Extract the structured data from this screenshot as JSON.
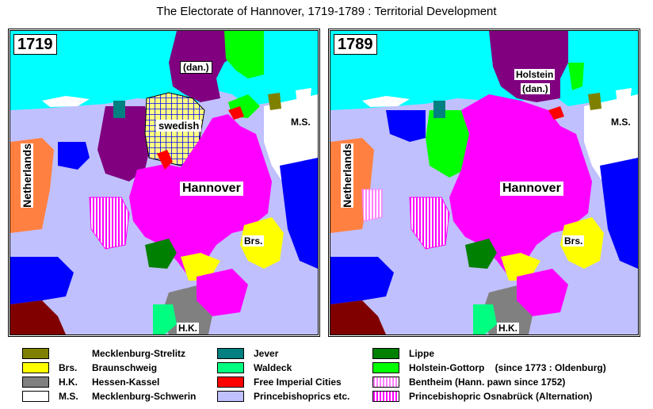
{
  "title": "The Electorate of Hannover, 1719-1789 :  Territorial Development",
  "colors": {
    "sea": "#00ffff",
    "hannover": "#ff00ff",
    "denmark": "#800080",
    "swedish_fill": "#ffff80",
    "swedish_grid": "#0000ff",
    "netherlands": "#ff8040",
    "prince_bishoprics": "#c0c0ff",
    "prussia_blue": "#0000ff",
    "mecklenburg_strelitz": "#808000",
    "braunschweig": "#ffff00",
    "hessen_kassel": "#808080",
    "mecklenburg_schwerin": "#ffffff",
    "jever": "#008080",
    "waldeck": "#00ff80",
    "free_imperial_cities": "#ff0000",
    "lippe": "#008000",
    "holstein_gottorp": "#00ff00",
    "bentheim": "#ff80ff",
    "osnabrueck": "#ff00ff",
    "dark_red": "#800000"
  },
  "maps": [
    {
      "year": "1719",
      "labels": {
        "dan": "(dan.)",
        "swedish": "swedish",
        "ms": "M.S.",
        "netherlands": "Netherlands",
        "hannover": "Hannover",
        "brs": "Brs.",
        "hk": "H.K."
      }
    },
    {
      "year": "1789",
      "labels": {
        "holstein": "Holstein",
        "dan": "(dan.)",
        "ms": "M.S.",
        "netherlands": "Netherlands",
        "hannover": "Hannover",
        "brs": "Brs.",
        "hk": "H.K."
      }
    }
  ],
  "legend": {
    "col1": [
      {
        "abbr": "",
        "text": "Mecklenburg-Strelitz",
        "icon": "olive-swatch"
      },
      {
        "abbr": "Brs.",
        "text": "Braunschweig",
        "icon": "yellow-swatch"
      },
      {
        "abbr": "H.K.",
        "text": "Hessen-Kassel",
        "icon": "gray-swatch"
      },
      {
        "abbr": "M.S.",
        "text": "Mecklenburg-Schwerin",
        "icon": "white-swatch"
      }
    ],
    "col2": [
      {
        "text": "Jever",
        "icon": "teal-swatch"
      },
      {
        "text": "Waldeck",
        "icon": "spring-green-swatch"
      },
      {
        "text": "Free Imperial Cities",
        "icon": "red-swatch"
      },
      {
        "text": "Princebishoprics etc.",
        "icon": "lavender-swatch"
      }
    ],
    "col3": [
      {
        "text": "Lippe",
        "icon": "green-swatch"
      },
      {
        "text": "Holstein-Gottorp    (since 1773 : Oldenburg)",
        "icon": "lime-swatch"
      },
      {
        "text": "Bentheim (Hann. pawn since 1752)",
        "icon": "pink-hatch-swatch"
      },
      {
        "text": "Princebishopric Osnabrück  (Alternation)",
        "icon": "magenta-hatch-swatch"
      }
    ]
  }
}
